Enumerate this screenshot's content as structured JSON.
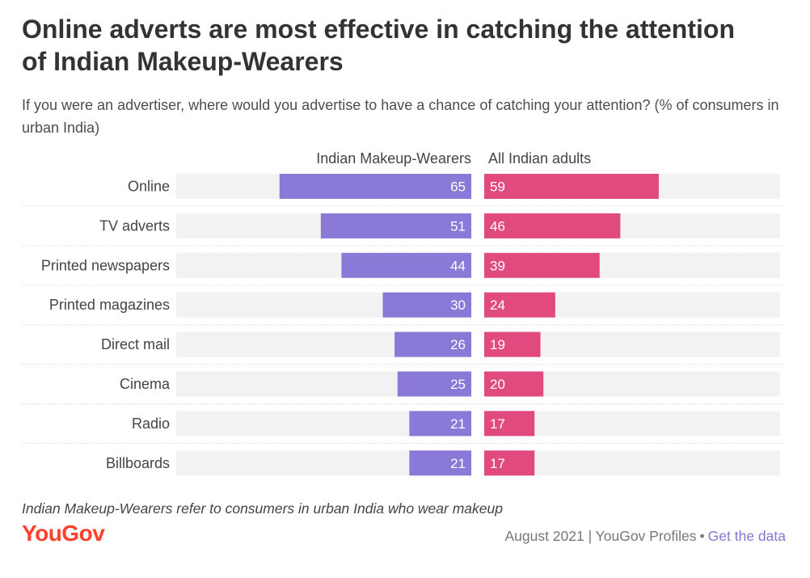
{
  "title": "Online adverts are most effective in catching the attention of Indian Makeup-Wearers",
  "subtitle": "If you were an advertiser, where would you advertise to have a chance of catching your attention? (% of consumers in urban India)",
  "footnote": "Indian Makeup-Wearers refer to consumers in urban India who wear makeup",
  "logo": "YouGov",
  "footer": {
    "source": "August 2021 | YouGov Profiles",
    "separator": "•",
    "link": "Get the data"
  },
  "colors": {
    "makeup": "#8a79d6",
    "adults": "#e04a7f",
    "track": "#f2f2f2",
    "logo": "#ff412c",
    "link": "#8876d6"
  },
  "chart_data": {
    "type": "bar",
    "orientation": "horizontal",
    "layout": "back-to-back",
    "categories": [
      "Online",
      "TV adverts",
      "Printed newspapers",
      "Printed magazines",
      "Direct mail",
      "Cinema",
      "Radio",
      "Billboards"
    ],
    "series": [
      {
        "name": "Indian Makeup-Wearers",
        "values": [
          65,
          51,
          44,
          30,
          26,
          25,
          21,
          21
        ]
      },
      {
        "name": "All Indian adults",
        "values": [
          59,
          46,
          39,
          24,
          19,
          20,
          17,
          17
        ]
      }
    ],
    "xlim": [
      0,
      100
    ],
    "data_labels": true
  }
}
